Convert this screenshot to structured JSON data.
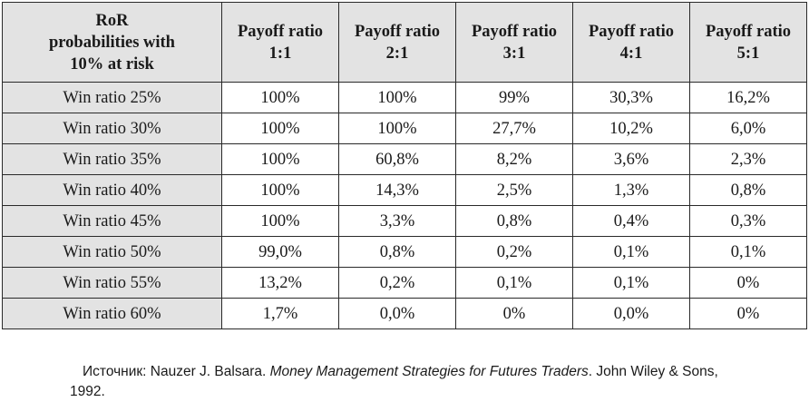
{
  "table": {
    "corner_header": [
      "RoR",
      "probabilities with",
      "10% at risk"
    ],
    "column_headers": [
      [
        "Payoff ratio",
        "1:1"
      ],
      [
        "Payoff ratio",
        "2:1"
      ],
      [
        "Payoff ratio",
        "3:1"
      ],
      [
        "Payoff ratio",
        "4:1"
      ],
      [
        "Payoff ratio",
        "5:1"
      ]
    ],
    "rows": [
      {
        "label": "Win ratio 25%",
        "cells": [
          "100%",
          "100%",
          "99%",
          "30,3%",
          "16,2%"
        ]
      },
      {
        "label": "Win ratio 30%",
        "cells": [
          "100%",
          "100%",
          "27,7%",
          "10,2%",
          "6,0%"
        ]
      },
      {
        "label": "Win ratio 35%",
        "cells": [
          "100%",
          "60,8%",
          "8,2%",
          "3,6%",
          "2,3%"
        ]
      },
      {
        "label": "Win ratio 40%",
        "cells": [
          "100%",
          "14,3%",
          "2,5%",
          "1,3%",
          "0,8%"
        ]
      },
      {
        "label": "Win ratio 45%",
        "cells": [
          "100%",
          "3,3%",
          "0,8%",
          "0,4%",
          "0,3%"
        ]
      },
      {
        "label": "Win ratio 50%",
        "cells": [
          "99,0%",
          "0,8%",
          "0,2%",
          "0,1%",
          "0,1%"
        ]
      },
      {
        "label": "Win ratio 55%",
        "cells": [
          "13,2%",
          "0,2%",
          "0,1%",
          "0,1%",
          "0%"
        ]
      },
      {
        "label": "Win ratio 60%",
        "cells": [
          "1,7%",
          "0,0%",
          "0%",
          "0,0%",
          "0%"
        ]
      }
    ]
  },
  "source": {
    "prefix": "Источник: Nauzer J. Balsara. ",
    "book_title": "Money Management Strategies for Futures Traders",
    "suffix_line1": ". John Wiley & Sons,",
    "line2": "1992."
  },
  "colors": {
    "header_background": "#e3e3e3",
    "border": "#2a2a2a",
    "text": "#1a1a1a"
  }
}
